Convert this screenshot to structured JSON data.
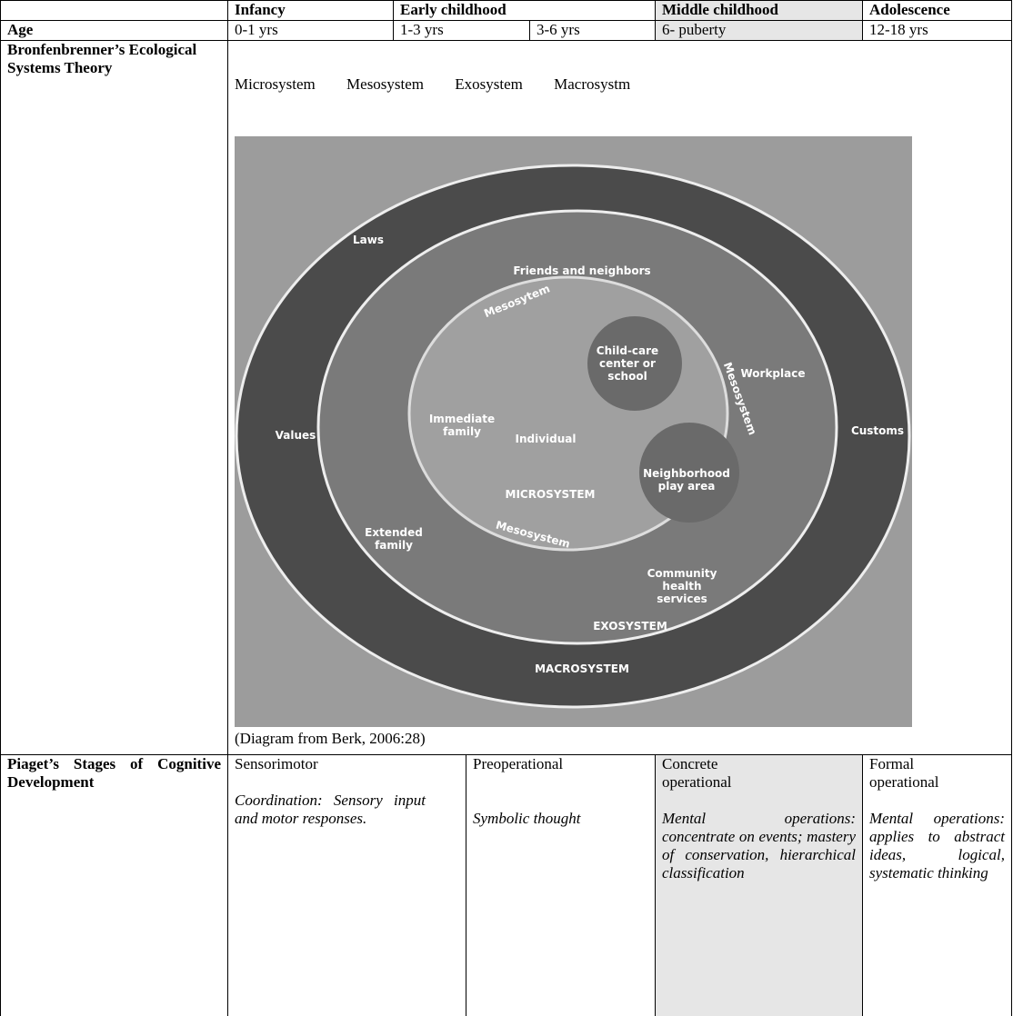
{
  "table": {
    "header": [
      "Infancy",
      "Early childhood",
      "Middle childhood",
      "Adolescence"
    ],
    "age": {
      "label": "Age",
      "values": [
        "0-1 yrs",
        "1-3 yrs",
        "3-6 yrs",
        "6- puberty",
        "12-18 yrs"
      ]
    },
    "bronfenbrenner": {
      "label": "Bronfenbrenner’s Ecological Systems Theory",
      "systems": [
        "Microsystem",
        "Mesosystem",
        "Exosystem",
        "Macrosystm"
      ],
      "diagram": {
        "labels": [
          [
            "Laws"
          ],
          [
            "Friends and neighbors"
          ],
          [
            "Mesosytem"
          ],
          [
            "Child-care",
            "center or",
            "school"
          ],
          [
            "Mesosystem"
          ],
          [
            "Workplace"
          ],
          [
            "Immediate",
            "family"
          ],
          [
            "Individual"
          ],
          [
            "Values"
          ],
          [
            "MICROSYSTEM"
          ],
          [
            "Neighborhood",
            "play area"
          ],
          [
            "Customs"
          ],
          [
            "Extended",
            "family"
          ],
          [
            "Mesosystem"
          ],
          [
            "Community",
            "health",
            "services"
          ],
          [
            "EXOSYSTEM"
          ],
          [
            "MACROSYSTEM"
          ]
        ]
      },
      "caption": "(Diagram from Berk, 2006:28)"
    },
    "piaget": {
      "label": "Piaget’s Stages of Cognitive Development",
      "stages": [
        {
          "name": "Sensorimotor",
          "description": "Coordination: Sensory input and motor responses."
        },
        {
          "name": "Preoperational",
          "description": "Symbolic thought"
        },
        {
          "name": "Concrete operational",
          "description": "Mental operations: concentrate on events; mastery of conservation, hierarchical classification"
        },
        {
          "name": "Formal operational",
          "description": "Mental operations: applies to abstract ideas, logical, systematic thinking"
        }
      ]
    }
  }
}
